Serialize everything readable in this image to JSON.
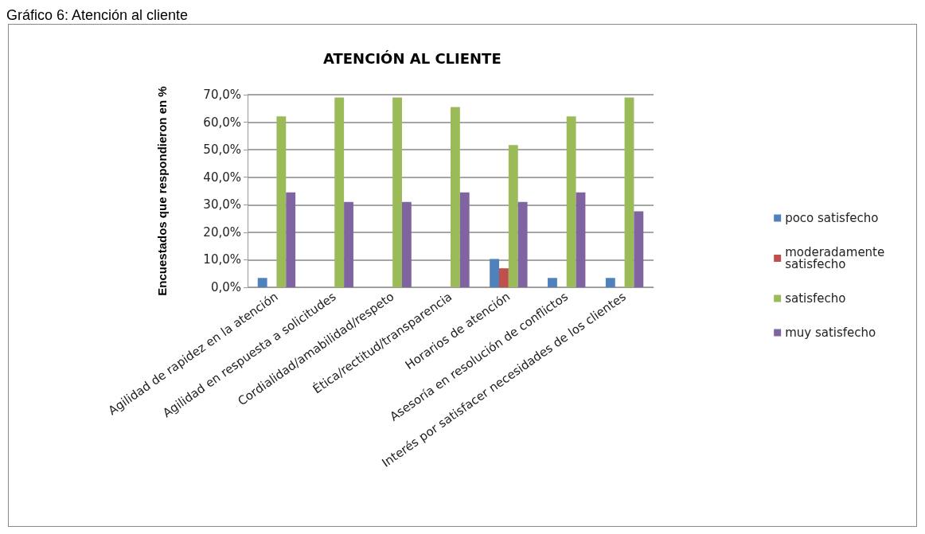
{
  "chart_data": {
    "type": "bar",
    "title": "ATENCIÓN AL CLIENTE",
    "ylabel": "Encuestados que respondieron en %",
    "annotations": [
      "Gráfico 6: Atención al cliente"
    ],
    "categories": [
      "Agilidad de rapidez en la atención",
      "Agilidad en respuesta a solicitudes",
      "Cordialidad/amabilidad/respeto",
      "Ética/rectitud/transparencia",
      "Horarios de atención",
      "Asesoría en resolución de conflictos",
      "Interés por satisfacer necesidades de los clientes"
    ],
    "series": [
      {
        "name": "poco satisfecho",
        "color": "#4f81bd",
        "values": [
          3.4,
          0,
          0,
          0,
          10.3,
          3.4,
          3.4
        ]
      },
      {
        "name": "moderadamente satisfecho",
        "color": "#c0504d",
        "values": [
          0,
          0,
          0,
          0,
          6.9,
          0,
          0
        ]
      },
      {
        "name": "satisfecho",
        "color": "#9bbb59",
        "values": [
          62.1,
          69.0,
          69.0,
          65.5,
          51.7,
          62.1,
          69.0
        ]
      },
      {
        "name": "muy satisfecho",
        "color": "#8064a2",
        "values": [
          34.5,
          31.0,
          31.0,
          34.5,
          31.0,
          34.5,
          27.6
        ]
      }
    ],
    "ylim": [
      0,
      70
    ],
    "yticks": [
      {
        "value": 0,
        "label": "0,0%"
      },
      {
        "value": 10,
        "label": "10,0%"
      },
      {
        "value": 20,
        "label": "20,0%"
      },
      {
        "value": 30,
        "label": "30,0%"
      },
      {
        "value": 40,
        "label": "40,0%"
      },
      {
        "value": 50,
        "label": "50,0%"
      },
      {
        "value": 60,
        "label": "60,0%"
      },
      {
        "value": 70,
        "label": "70,0%"
      }
    ],
    "grid": "y",
    "legend": "right"
  }
}
